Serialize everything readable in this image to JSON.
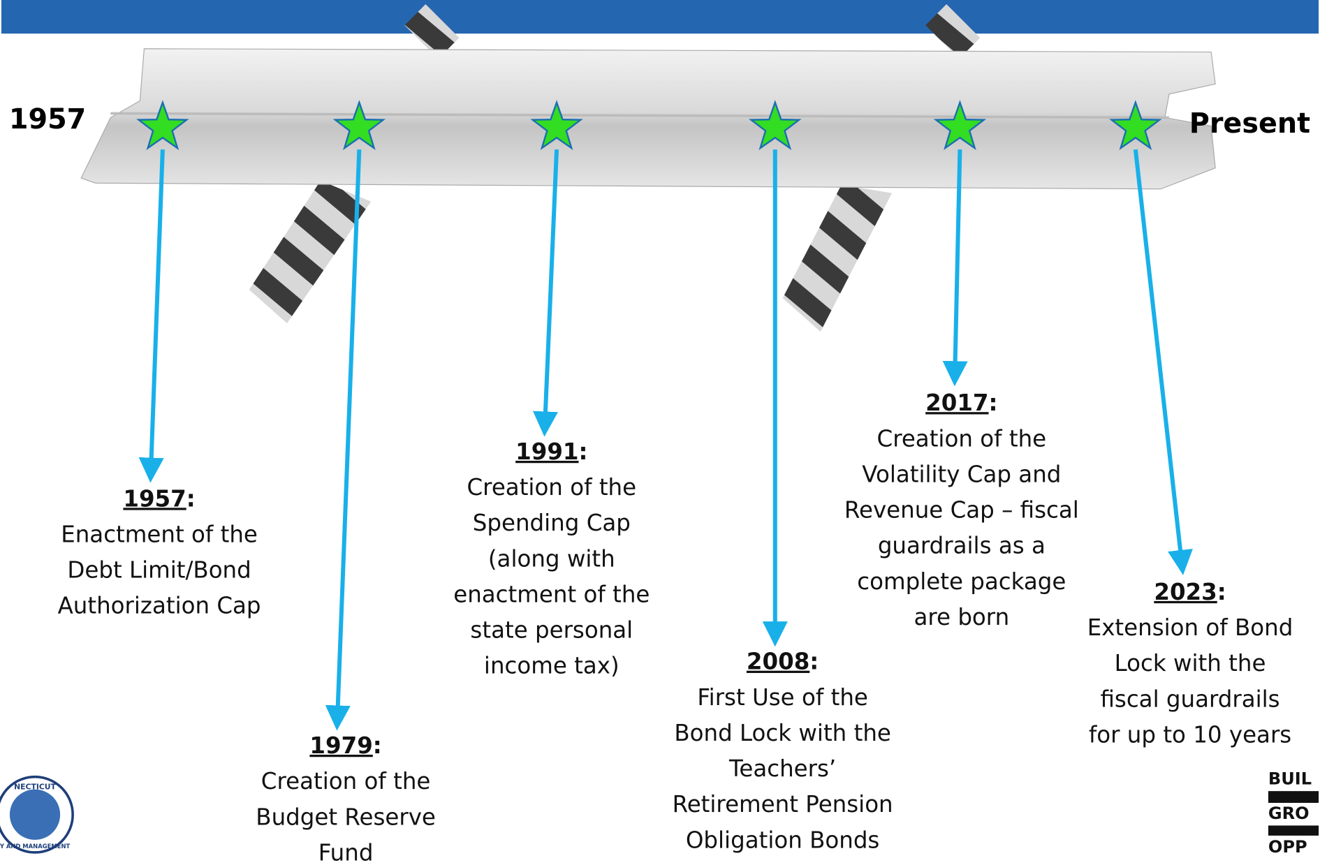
{
  "timeline": {
    "start_label": "1957",
    "end_label": "Present",
    "separator": ":",
    "events": [
      {
        "year": "1957",
        "lines": [
          "Enactment of the",
          "Debt Limit/Bond",
          "Authorization Cap"
        ]
      },
      {
        "year": "1979",
        "lines": [
          "Creation of the",
          "Budget Reserve",
          "Fund"
        ]
      },
      {
        "year": "1991",
        "lines": [
          "Creation of the",
          "Spending Cap",
          "(along with",
          "enactment of the",
          "state personal",
          "income tax)"
        ]
      },
      {
        "year": "2008",
        "lines": [
          "First Use of the",
          "Bond Lock with the",
          "Teachers’",
          "Retirement Pension",
          "Obligation Bonds"
        ]
      },
      {
        "year": "2017",
        "lines": [
          "Creation of the",
          "Volatility Cap and",
          "Revenue Cap – fiscal",
          "guardrails as a",
          "complete package",
          "are born"
        ]
      },
      {
        "year": "2023",
        "lines": [
          "Extension of Bond",
          "Lock with the",
          "fiscal guardrails",
          "for up to 10 years"
        ]
      }
    ]
  },
  "logos": {
    "left": [
      "NECTICUT",
      "Y AND MANAGEMENT"
    ],
    "right": [
      "BUIL",
      "GRO",
      "OPP"
    ]
  }
}
